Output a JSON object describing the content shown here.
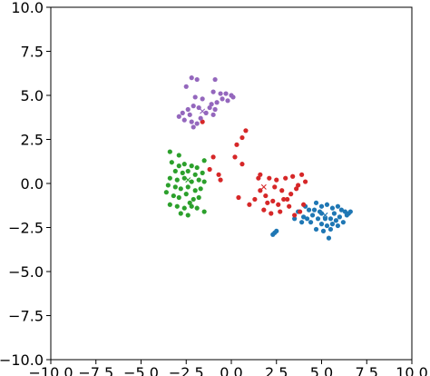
{
  "chart_data": {
    "type": "scatter",
    "title": "",
    "xlabel": "",
    "ylabel": "",
    "xlim": [
      -10,
      10
    ],
    "ylim": [
      -10,
      10
    ],
    "grid": false,
    "xticks": [
      -10.0,
      -7.5,
      -5.0,
      -2.5,
      0.0,
      2.5,
      5.0,
      7.5,
      10.0
    ],
    "yticks": [
      -10.0,
      -7.5,
      -5.0,
      -2.5,
      0.0,
      2.5,
      5.0,
      7.5,
      10.0
    ],
    "xtick_labels": [
      "−10.0",
      "−7.5",
      "−5.0",
      "−2.5",
      "0.0",
      "2.5",
      "5.0",
      "7.5",
      "10.0"
    ],
    "ytick_labels": [
      "10.0",
      "7.5",
      "5.0",
      "2.5",
      "0.0",
      "−2.5",
      "−5.0",
      "−7.5",
      "−10.0"
    ],
    "ytick_label_values": [
      10.0,
      7.5,
      5.0,
      2.5,
      0.0,
      -2.5,
      -5.0,
      -7.5,
      -10.0
    ],
    "series": [
      {
        "color": "#1f77b4",
        "centroid": [
          5.2,
          -1.8
        ],
        "points": [
          [
            4.7,
            -1.1
          ],
          [
            5.0,
            -1.3
          ],
          [
            5.3,
            -1.2
          ],
          [
            5.6,
            -1.4
          ],
          [
            5.9,
            -1.3
          ],
          [
            6.1,
            -1.5
          ],
          [
            6.3,
            -1.6
          ],
          [
            6.5,
            -1.7
          ],
          [
            6.6,
            -1.6
          ],
          [
            6.0,
            -1.9
          ],
          [
            5.8,
            -2.1
          ],
          [
            5.5,
            -2.0
          ],
          [
            5.3,
            -2.4
          ],
          [
            5.0,
            -2.3
          ],
          [
            4.8,
            -2.0
          ],
          [
            4.5,
            -1.8
          ],
          [
            4.3,
            -1.5
          ],
          [
            4.1,
            -1.3
          ],
          [
            4.0,
            -1.9
          ],
          [
            4.4,
            -2.2
          ],
          [
            4.7,
            -2.6
          ],
          [
            5.1,
            -2.7
          ],
          [
            5.5,
            -2.6
          ],
          [
            5.9,
            -2.4
          ],
          [
            6.2,
            -2.2
          ],
          [
            5.4,
            -3.1
          ],
          [
            4.9,
            -1.6
          ],
          [
            5.7,
            -1.7
          ],
          [
            4.6,
            -1.5
          ],
          [
            5.2,
            -2.0
          ],
          [
            3.7,
            -1.6
          ],
          [
            2.4,
            -2.8
          ],
          [
            2.3,
            -2.9
          ],
          [
            2.5,
            -2.7
          ],
          [
            3.9,
            -2.2
          ],
          [
            6.4,
            -1.8
          ],
          [
            5.6,
            -2.3
          ],
          [
            4.2,
            -2.0
          ],
          [
            5.0,
            -1.7
          ],
          [
            3.5,
            -2.0
          ]
        ]
      },
      {
        "color": "#d62728",
        "centroid": [
          1.8,
          -0.2
        ],
        "points": [
          [
            1.6,
            0.5
          ],
          [
            2.1,
            0.3
          ],
          [
            2.5,
            0.2
          ],
          [
            3.0,
            0.3
          ],
          [
            3.4,
            0.4
          ],
          [
            3.9,
            0.5
          ],
          [
            4.1,
            0.1
          ],
          [
            3.6,
            -0.3
          ],
          [
            3.3,
            -0.6
          ],
          [
            2.9,
            -0.9
          ],
          [
            2.6,
            -1.2
          ],
          [
            2.3,
            -1.0
          ],
          [
            1.9,
            -0.7
          ],
          [
            1.6,
            -0.4
          ],
          [
            1.3,
            -0.9
          ],
          [
            1.0,
            -1.2
          ],
          [
            1.8,
            -1.5
          ],
          [
            2.2,
            -1.7
          ],
          [
            2.7,
            -1.6
          ],
          [
            3.2,
            -1.3
          ],
          [
            3.5,
            -1.8
          ],
          [
            3.8,
            -1.6
          ],
          [
            4.0,
            -1.2
          ],
          [
            2.8,
            -0.4
          ],
          [
            3.7,
            -0.1
          ],
          [
            0.3,
            2.2
          ],
          [
            0.6,
            2.6
          ],
          [
            0.8,
            3.0
          ],
          [
            0.2,
            1.5
          ],
          [
            0.6,
            1.1
          ],
          [
            -1.2,
            0.8
          ],
          [
            -1.0,
            1.5
          ],
          [
            -0.7,
            0.5
          ],
          [
            -0.6,
            0.2
          ],
          [
            0.4,
            -0.8
          ],
          [
            -1.6,
            3.5
          ],
          [
            2.0,
            -1.1
          ],
          [
            2.4,
            -0.2
          ],
          [
            3.1,
            -0.9
          ],
          [
            1.5,
            0.3
          ]
        ]
      },
      {
        "color": "#2ca02c",
        "centroid": [
          -2.4,
          0.2
        ],
        "points": [
          [
            -2.9,
            1.0
          ],
          [
            -2.6,
            1.1
          ],
          [
            -2.2,
            1.0
          ],
          [
            -1.9,
            0.9
          ],
          [
            -3.1,
            0.7
          ],
          [
            -2.7,
            0.6
          ],
          [
            -2.4,
            0.7
          ],
          [
            -2.0,
            0.5
          ],
          [
            -1.6,
            0.6
          ],
          [
            -3.4,
            0.3
          ],
          [
            -3.0,
            0.2
          ],
          [
            -2.6,
            0.3
          ],
          [
            -2.2,
            0.1
          ],
          [
            -1.8,
            0.2
          ],
          [
            -1.5,
            0.1
          ],
          [
            -3.5,
            -0.1
          ],
          [
            -3.1,
            -0.2
          ],
          [
            -2.8,
            -0.3
          ],
          [
            -2.4,
            -0.2
          ],
          [
            -2.0,
            -0.4
          ],
          [
            -1.7,
            -0.3
          ],
          [
            -3.6,
            -0.5
          ],
          [
            -3.2,
            -0.7
          ],
          [
            -2.9,
            -0.8
          ],
          [
            -2.5,
            -0.6
          ],
          [
            -2.1,
            -0.9
          ],
          [
            -1.8,
            -0.8
          ],
          [
            -3.4,
            -1.2
          ],
          [
            -3.0,
            -1.3
          ],
          [
            -2.6,
            -1.4
          ],
          [
            -2.2,
            -1.3
          ],
          [
            -1.9,
            -1.4
          ],
          [
            -1.5,
            -1.6
          ],
          [
            -2.8,
            -1.7
          ],
          [
            -2.4,
            -1.8
          ],
          [
            -3.4,
            1.8
          ],
          [
            -2.9,
            1.6
          ],
          [
            -1.5,
            1.3
          ],
          [
            -3.3,
            1.2
          ],
          [
            -2.3,
            -1.1
          ]
        ]
      },
      {
        "color": "#9467bd",
        "centroid": [
          -1.6,
          4.1
        ],
        "points": [
          [
            -2.2,
            6.0
          ],
          [
            -1.9,
            5.9
          ],
          [
            -0.9,
            5.9
          ],
          [
            -2.5,
            5.5
          ],
          [
            -1.0,
            5.2
          ],
          [
            -0.6,
            5.1
          ],
          [
            -0.3,
            5.1
          ],
          [
            0.0,
            5.0
          ],
          [
            0.1,
            4.9
          ],
          [
            -0.2,
            4.7
          ],
          [
            -0.5,
            4.8
          ],
          [
            -0.8,
            4.6
          ],
          [
            -1.1,
            4.5
          ],
          [
            -1.2,
            4.3
          ],
          [
            -1.0,
            3.9
          ],
          [
            -1.4,
            4.0
          ],
          [
            -1.8,
            4.3
          ],
          [
            -2.1,
            4.4
          ],
          [
            -2.4,
            4.2
          ],
          [
            -2.7,
            4.0
          ],
          [
            -2.9,
            3.8
          ],
          [
            -2.6,
            3.6
          ],
          [
            -2.2,
            3.5
          ],
          [
            -1.9,
            3.4
          ],
          [
            -2.1,
            3.2
          ],
          [
            -1.6,
            4.8
          ],
          [
            -2.0,
            4.9
          ],
          [
            -0.9,
            4.2
          ],
          [
            -2.3,
            3.9
          ],
          [
            -1.7,
            3.7
          ]
        ]
      }
    ]
  }
}
